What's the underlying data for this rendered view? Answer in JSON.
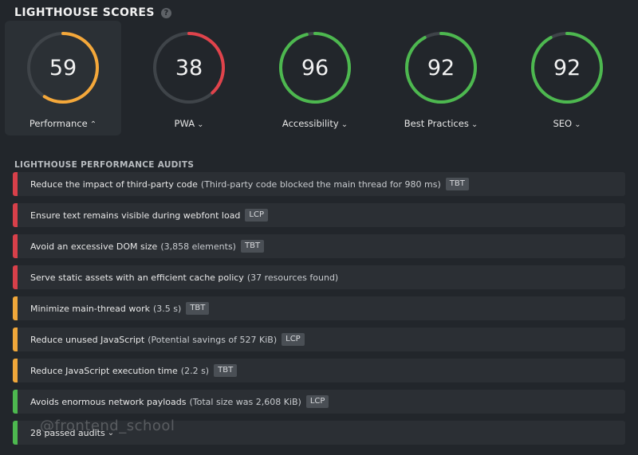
{
  "header": {
    "title": "LIGHTHOUSE SCORES",
    "help_icon": "?"
  },
  "scores": [
    {
      "label": "Performance",
      "value": "59",
      "chevron": "⌃",
      "color": "#f5a83a",
      "fraction": 0.59,
      "active": true
    },
    {
      "label": "PWA",
      "value": "38",
      "chevron": "⌄",
      "color": "#e0434b",
      "fraction": 0.38,
      "active": false
    },
    {
      "label": "Accessibility",
      "value": "96",
      "chevron": "⌄",
      "color": "#4db84f",
      "fraction": 0.96,
      "active": false
    },
    {
      "label": "Best Practices",
      "value": "92",
      "chevron": "⌄",
      "color": "#4db84f",
      "fraction": 0.92,
      "active": false
    },
    {
      "label": "SEO",
      "value": "92",
      "chevron": "⌄",
      "color": "#4db84f",
      "fraction": 0.92,
      "active": false
    }
  ],
  "audits_title": "LIGHTHOUSE PERFORMANCE AUDITS",
  "status_colors": {
    "fail": "#d8404a",
    "warn": "#f0a73a",
    "pass": "#4db84f"
  },
  "audits": [
    {
      "text": "Reduce the impact of third-party code",
      "detail": "(Third-party code blocked the main thread for 980 ms)",
      "tag": "TBT",
      "status": "fail"
    },
    {
      "text": "Ensure text remains visible during webfont load",
      "detail": "",
      "tag": "LCP",
      "status": "fail"
    },
    {
      "text": "Avoid an excessive DOM size",
      "detail": "(3,858 elements)",
      "tag": "TBT",
      "status": "fail"
    },
    {
      "text": "Serve static assets with an efficient cache policy",
      "detail": "(37 resources found)",
      "tag": "",
      "status": "fail"
    },
    {
      "text": "Minimize main-thread work",
      "detail": "(3.5 s)",
      "tag": "TBT",
      "status": "warn"
    },
    {
      "text": "Reduce unused JavaScript",
      "detail": "(Potential savings of 527 KiB)",
      "tag": "LCP",
      "status": "warn"
    },
    {
      "text": "Reduce JavaScript execution time",
      "detail": "(2.2 s)",
      "tag": "TBT",
      "status": "warn"
    },
    {
      "text": "Avoids enormous network payloads",
      "detail": "(Total size was 2,608 KiB)",
      "tag": "LCP",
      "status": "pass"
    }
  ],
  "passed": {
    "label": "28 passed audits",
    "chevron": "⌄",
    "status": "pass"
  },
  "watermark": "@frontend_school"
}
